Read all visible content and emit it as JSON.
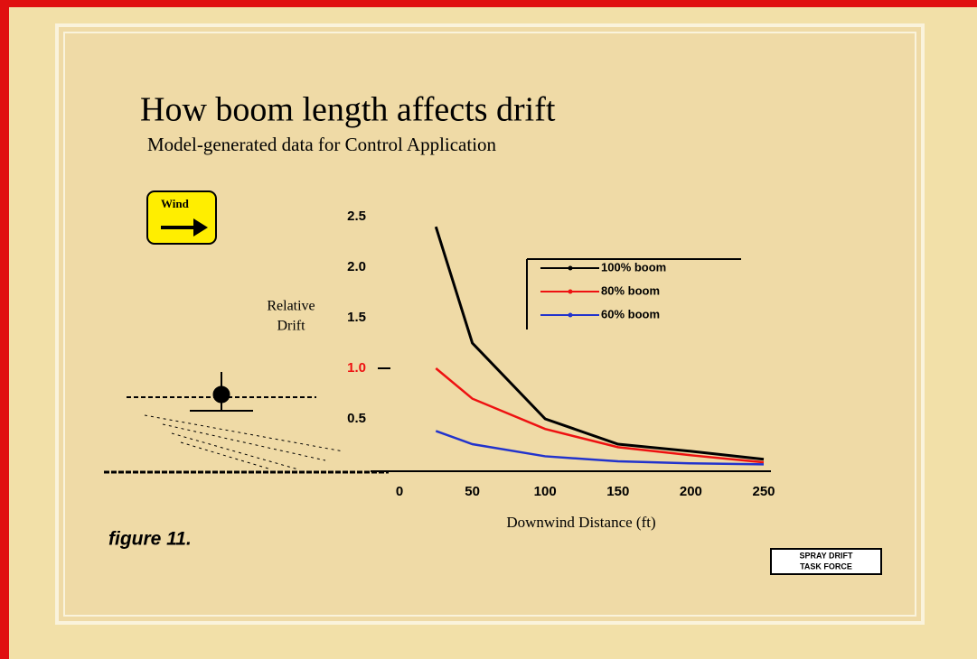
{
  "chart_data": {
    "type": "line",
    "title": "How boom length affects drift",
    "subtitle": "Model-generated data for Control Application",
    "y_label": [
      "Relative",
      "Drift"
    ],
    "x_label": "Downwind Distance (ft)",
    "x": [
      25,
      50,
      100,
      150,
      200,
      250
    ],
    "series": [
      {
        "name": "100% boom",
        "color": "#000000",
        "values": [
          2.4,
          1.25,
          0.5,
          0.25,
          0.18,
          0.1
        ]
      },
      {
        "name": "80% boom",
        "color": "#ee1111",
        "values": [
          1.0,
          0.7,
          0.4,
          0.22,
          0.14,
          0.07
        ]
      },
      {
        "name": "60% boom",
        "color": "#2233cc",
        "values": [
          0.38,
          0.25,
          0.13,
          0.08,
          0.06,
          0.05
        ]
      }
    ],
    "xlim": [
      0,
      250
    ],
    "xticks": [
      0,
      50,
      100,
      150,
      200,
      250
    ],
    "ylim": [
      0,
      2.5
    ],
    "yticks": [
      0.5,
      {
        "value": 1,
        "label": "1.0",
        "color": "#ee1111"
      },
      1.5,
      {
        "value": 2,
        "label": "2.0"
      },
      2.5
    ],
    "legend": "upper right"
  },
  "caption": "figure 11.",
  "wind_label": "Wind",
  "logo": [
    "SPRAY DRIFT",
    "TASK FORCE"
  ]
}
